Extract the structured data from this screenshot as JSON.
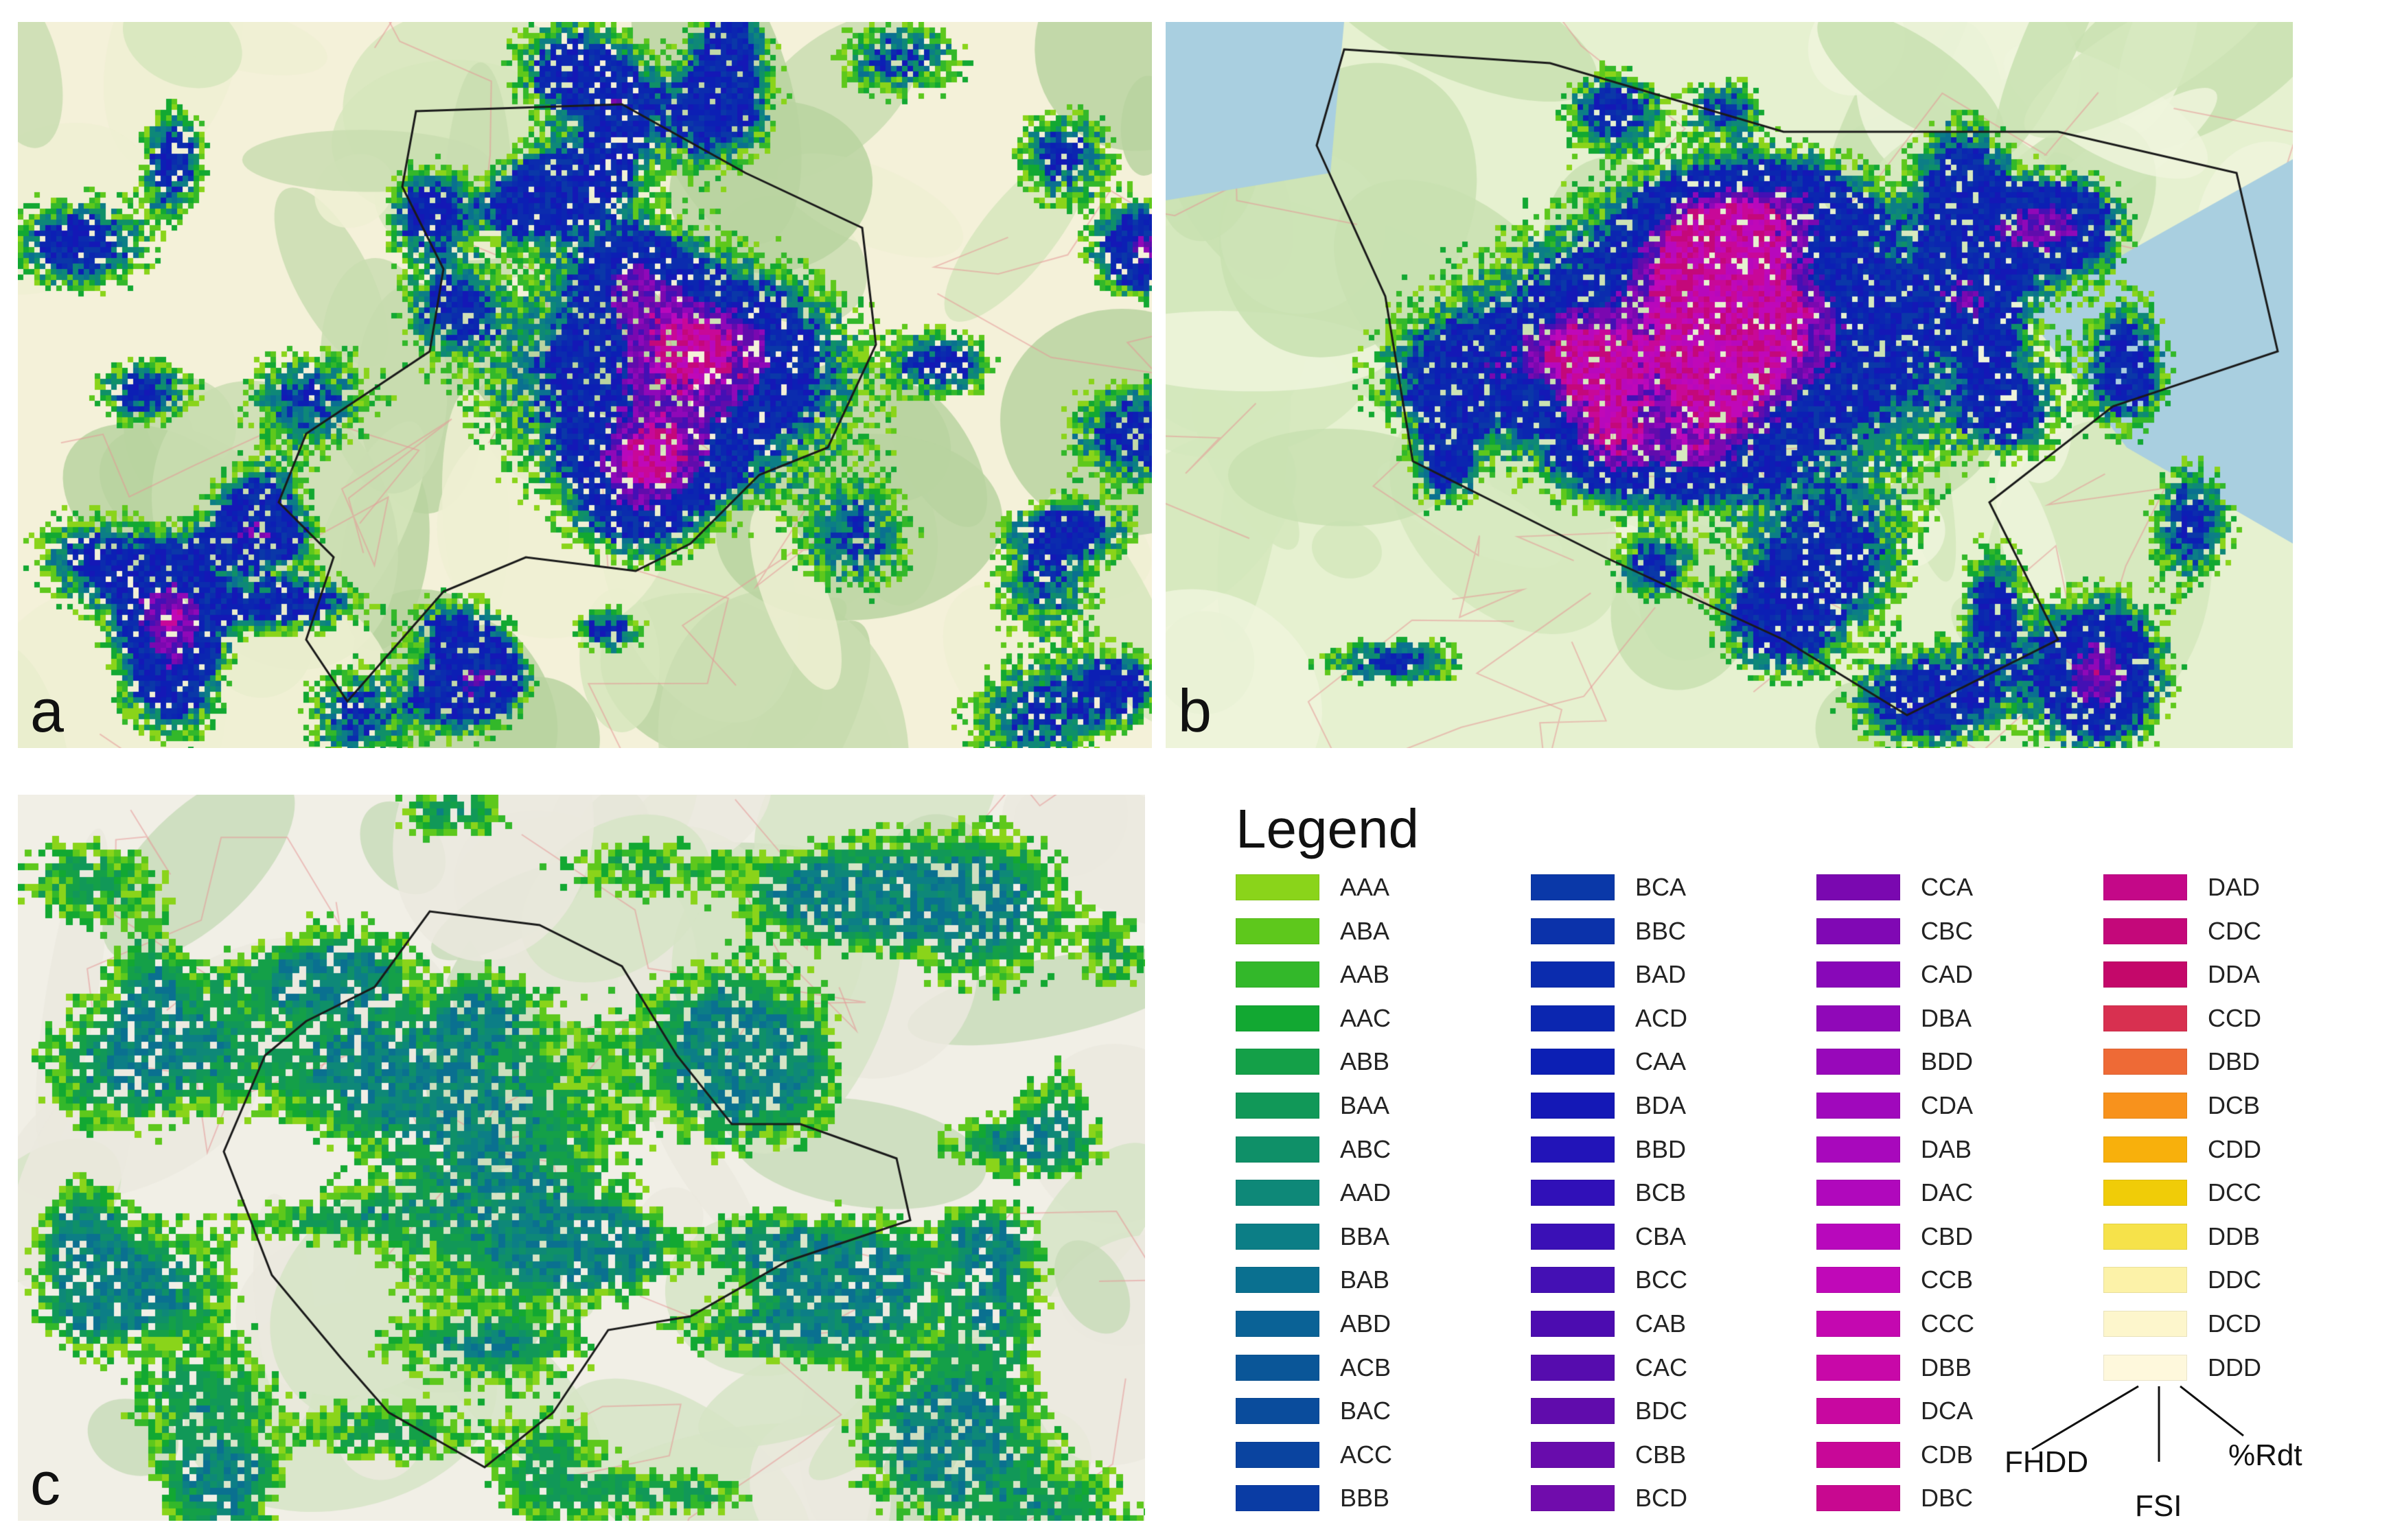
{
  "panels": [
    {
      "id": "a",
      "label": "a"
    },
    {
      "id": "b",
      "label": "b"
    },
    {
      "id": "c",
      "label": "c"
    }
  ],
  "legend": {
    "title": "Legend",
    "columns": [
      [
        {
          "code": "AAA",
          "color": "#8ad41a"
        },
        {
          "code": "ABA",
          "color": "#5ec81c"
        },
        {
          "code": "AAB",
          "color": "#33b82a"
        },
        {
          "code": "AAC",
          "color": "#12a832"
        },
        {
          "code": "ABB",
          "color": "#14a048"
        },
        {
          "code": "BAA",
          "color": "#119858"
        },
        {
          "code": "ABC",
          "color": "#0f9068"
        },
        {
          "code": "AAD",
          "color": "#0e8878"
        },
        {
          "code": "BBA",
          "color": "#0c7e86"
        },
        {
          "code": "BAB",
          "color": "#0a7090"
        },
        {
          "code": "ABD",
          "color": "#0a6296"
        },
        {
          "code": "ACB",
          "color": "#0a5698"
        },
        {
          "code": "BAC",
          "color": "#0a4c9c"
        },
        {
          "code": "ACC",
          "color": "#0a44a0"
        },
        {
          "code": "BBB",
          "color": "#0a3ca4"
        }
      ],
      [
        {
          "code": "BCA",
          "color": "#0a38a8"
        },
        {
          "code": "BBC",
          "color": "#0b32aa"
        },
        {
          "code": "BAD",
          "color": "#0b2cae"
        },
        {
          "code": "ACD",
          "color": "#0b26b0"
        },
        {
          "code": "CAA",
          "color": "#0c1fb4"
        },
        {
          "code": "BDA",
          "color": "#1418b6"
        },
        {
          "code": "BBD",
          "color": "#2214b8"
        },
        {
          "code": "BCB",
          "color": "#3010b8"
        },
        {
          "code": "CBA",
          "color": "#3a10b6"
        },
        {
          "code": "BCC",
          "color": "#4410b4"
        },
        {
          "code": "CAB",
          "color": "#4c0cb0"
        },
        {
          "code": "CAC",
          "color": "#560cae"
        },
        {
          "code": "BDC",
          "color": "#600cac"
        },
        {
          "code": "CBB",
          "color": "#680cac"
        },
        {
          "code": "BCD",
          "color": "#700cac"
        }
      ],
      [
        {
          "code": "CCA",
          "color": "#7a08b0"
        },
        {
          "code": "CBC",
          "color": "#8008b4"
        },
        {
          "code": "CAD",
          "color": "#8808b8"
        },
        {
          "code": "DBA",
          "color": "#9008b8"
        },
        {
          "code": "BDD",
          "color": "#9808ba"
        },
        {
          "code": "CDA",
          "color": "#a008bc"
        },
        {
          "code": "DAB",
          "color": "#a808bc"
        },
        {
          "code": "DAC",
          "color": "#b008bc"
        },
        {
          "code": "CBD",
          "color": "#b808bc"
        },
        {
          "code": "CCB",
          "color": "#c008b8"
        },
        {
          "code": "CCC",
          "color": "#c408b0"
        },
        {
          "code": "DBB",
          "color": "#c808a8"
        },
        {
          "code": "DCA",
          "color": "#c808a0"
        },
        {
          "code": "CDB",
          "color": "#c80898"
        },
        {
          "code": "DBC",
          "color": "#c80890"
        }
      ],
      [
        {
          "code": "DAD",
          "color": "#c40888"
        },
        {
          "code": "CDC",
          "color": "#c4087a"
        },
        {
          "code": "DDA",
          "color": "#c4086a"
        },
        {
          "code": "CCD",
          "color": "#d83050"
        },
        {
          "code": "DBD",
          "color": "#ee6a36"
        },
        {
          "code": "DCB",
          "color": "#f8921c"
        },
        {
          "code": "CDD",
          "color": "#f8b00c"
        },
        {
          "code": "DCC",
          "color": "#f0cc08"
        },
        {
          "code": "DDB",
          "color": "#f6e24a"
        },
        {
          "code": "DDC",
          "color": "#fcf2a8"
        },
        {
          "code": "DCD",
          "color": "#fdf6cc"
        },
        {
          "code": "DDD",
          "color": "#fef8dc"
        }
      ]
    ],
    "key": {
      "parts": [
        "FHDD",
        "FSI",
        "%Rdt"
      ]
    }
  }
}
